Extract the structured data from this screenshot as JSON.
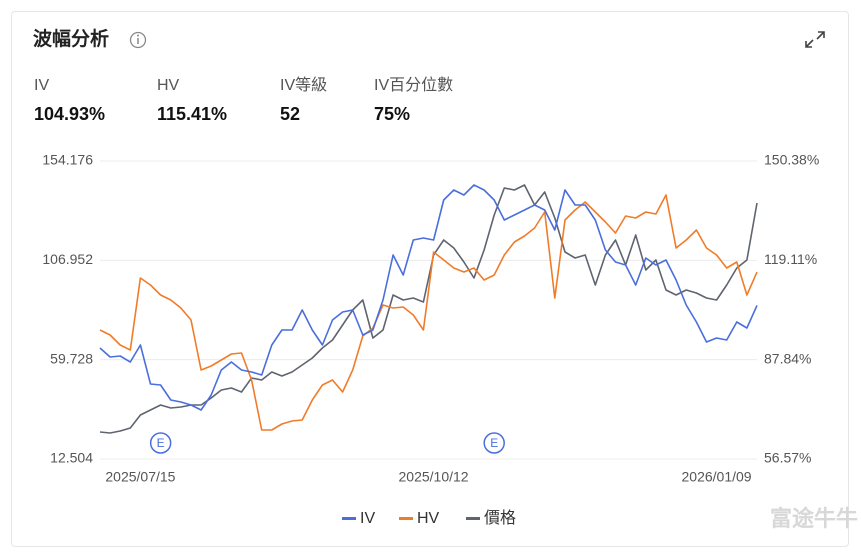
{
  "header": {
    "title": "波幅分析"
  },
  "stats": [
    {
      "label": "IV",
      "value": "104.93%"
    },
    {
      "label": "HV",
      "value": "115.41%"
    },
    {
      "label": "IV等級",
      "value": "52"
    },
    {
      "label": "IV百分位數",
      "value": "75%"
    }
  ],
  "watermark": "富途牛牛",
  "chart_data": {
    "type": "line",
    "categories": [
      null,
      null,
      null,
      null,
      "2025/07/15",
      null,
      null,
      null,
      null,
      null,
      null,
      null,
      null,
      null,
      null,
      null,
      null,
      null,
      null,
      null,
      null,
      null,
      null,
      null,
      null,
      null,
      null,
      null,
      null,
      null,
      null,
      null,
      null,
      "2025/10/12",
      null,
      null,
      null,
      null,
      null,
      null,
      null,
      null,
      null,
      null,
      null,
      null,
      null,
      null,
      null,
      null,
      null,
      null,
      null,
      null,
      null,
      null,
      null,
      null,
      null,
      null,
      null,
      "2026/01/09",
      null,
      null,
      null,
      null
    ],
    "series": [
      {
        "name": "IV",
        "color": "#4a6fdc",
        "axis": "y2",
        "values": [
          91.51,
          88.68,
          88.99,
          87.11,
          92.46,
          80.18,
          79.87,
          75.14,
          74.51,
          73.57,
          72.0,
          76.72,
          84.59,
          87.11,
          84.59,
          83.96,
          83.01,
          92.46,
          97.18,
          97.18,
          103.48,
          97.18,
          92.46,
          100.33,
          102.85,
          103.48,
          95.61,
          97.18,
          106.62,
          120.79,
          114.49,
          125.51,
          126.14,
          125.51,
          138.1,
          141.25,
          139.68,
          142.83,
          141.25,
          138.1,
          131.81,
          133.38,
          134.96,
          136.53,
          134.96,
          128.66,
          141.25,
          136.53,
          136.53,
          131.81,
          122.36,
          118.59,
          117.64,
          111.35,
          119.85,
          117.64,
          119.22,
          112.92,
          105.05,
          99.7,
          93.4,
          94.66,
          94.03,
          99.7,
          97.81,
          104.93
        ]
      },
      {
        "name": "HV",
        "color": "#f07c2a",
        "axis": "y2",
        "values": [
          97.18,
          95.61,
          92.46,
          90.88,
          113.55,
          111.35,
          108.2,
          106.62,
          104.1,
          100.33,
          84.59,
          85.85,
          87.74,
          89.62,
          89.94,
          81.44,
          65.7,
          65.7,
          67.59,
          68.53,
          68.85,
          75.14,
          79.87,
          81.44,
          77.66,
          84.59,
          95.29,
          97.81,
          105.05,
          104.1,
          104.42,
          101.9,
          97.18,
          121.73,
          119.22,
          116.7,
          115.44,
          116.7,
          112.92,
          114.49,
          120.79,
          124.88,
          126.77,
          129.29,
          134.33,
          107.25,
          131.81,
          134.96,
          137.47,
          134.33,
          131.18,
          127.71,
          133.07,
          132.44,
          134.33,
          133.7,
          139.68,
          122.99,
          125.51,
          128.66,
          122.99,
          120.79,
          116.7,
          118.59,
          108.2,
          115.41
        ]
      },
      {
        "name": "價格",
        "color": "#5f6470",
        "axis": "y",
        "values": [
          25.34,
          24.86,
          25.82,
          27.24,
          33.42,
          35.8,
          38.18,
          36.75,
          37.22,
          38.18,
          38.18,
          41.5,
          45.31,
          46.26,
          44.36,
          51.01,
          50.06,
          53.86,
          51.96,
          53.86,
          57.19,
          60.52,
          65.27,
          69.08,
          76.21,
          83.34,
          88.09,
          70.03,
          73.83,
          90.47,
          88.09,
          89.04,
          87.14,
          109.48,
          116.62,
          112.81,
          106.16,
          98.55,
          111.86,
          128.5,
          141.34,
          140.39,
          142.76,
          133.26,
          139.44,
          127.08,
          110.91,
          108.06,
          109.48,
          95.22,
          109.48,
          116.62,
          104.73,
          118.99,
          102.35,
          107.11,
          92.85,
          90.47,
          92.85,
          91.42,
          89.04,
          88.09,
          95.22,
          103.3,
          107.11,
          134.21
        ]
      }
    ],
    "ylim": [
      12.504,
      154.176
    ],
    "yticks": [
      12.504,
      59.728,
      106.952,
      154.176
    ],
    "y2lim": [
      56.57,
      150.38
    ],
    "y2ticks": [
      {
        "value": 56.57,
        "label": "56.57%"
      },
      {
        "value": 87.84,
        "label": "87.84%"
      },
      {
        "value": 119.11,
        "label": "119.11%"
      },
      {
        "value": 150.38,
        "label": "150.38%"
      }
    ],
    "events": [
      {
        "index": 6,
        "label": "E"
      },
      {
        "index": 39,
        "label": "E"
      }
    ],
    "grid": true,
    "legend": "bottom"
  }
}
